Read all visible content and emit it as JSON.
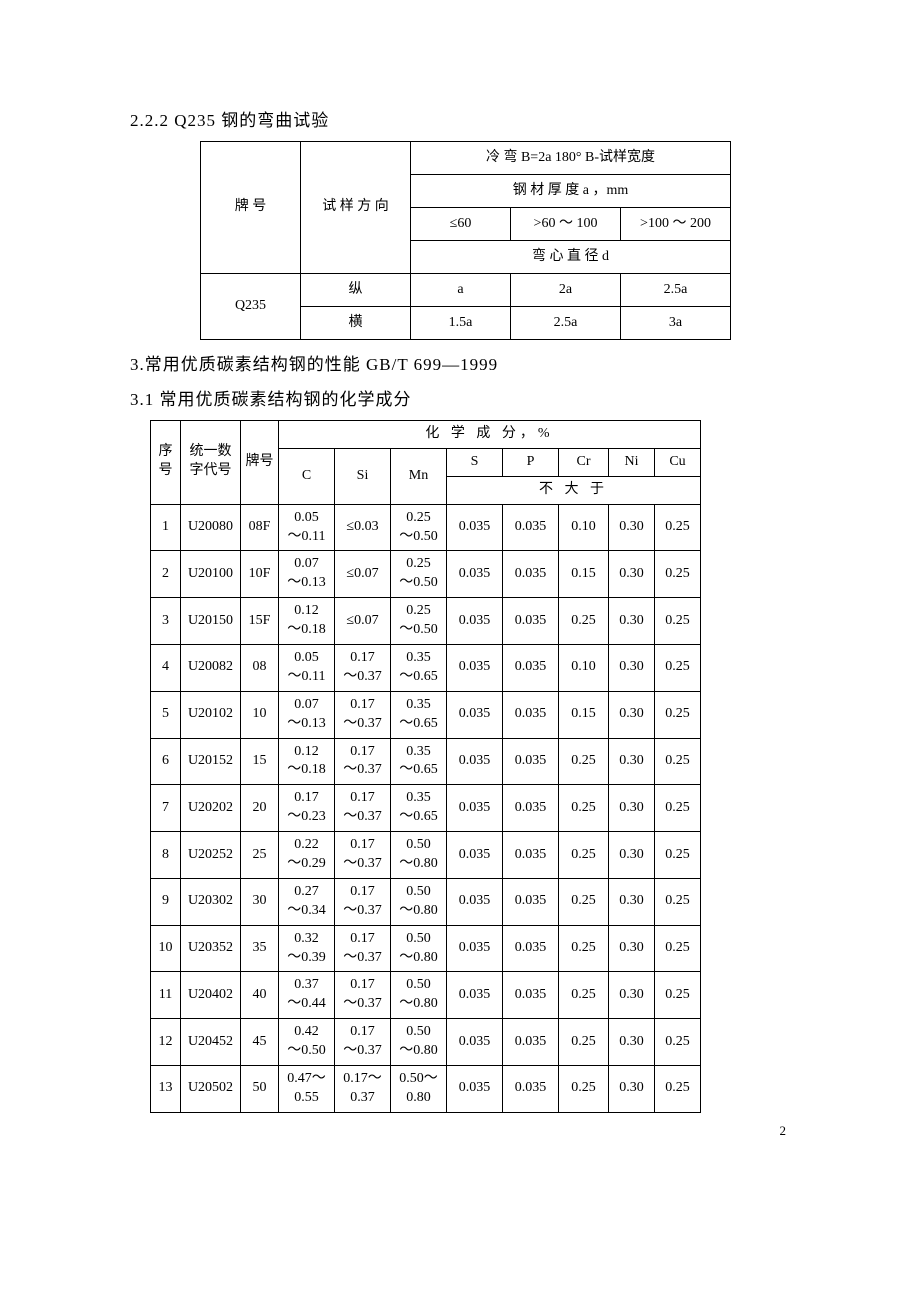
{
  "section222": {
    "heading": "2.2.2  Q235 钢的弯曲试验",
    "table": {
      "col_grade": "牌  号",
      "col_dir": "试 样 方 向",
      "cold_bend": "冷 弯 B=2a    180°    B-试样宽度",
      "thickness": "钢 材 厚 度 a ，mm",
      "range1": "≤60",
      "range2": ">60 ～ 100",
      "range3": ">100 ～ 200",
      "diam": "弯 心 直 径 d",
      "grade": "Q235",
      "long": "纵",
      "trans": "横",
      "r1c1": "a",
      "r1c2": "2a",
      "r1c3": "2.5a",
      "r2c1": "1.5a",
      "r2c2": "2.5a",
      "r2c3": "3a"
    }
  },
  "section3": {
    "heading": "3.常用优质碳素结构钢的性能  GB/T 699—1999"
  },
  "section31": {
    "heading": "3.1 常用优质碳素结构钢的化学成分",
    "header": {
      "seq": "序号",
      "code": "统一数字代号",
      "grade": "牌号",
      "chem": "化 学 成 分，%",
      "C": "C",
      "Si": "Si",
      "Mn": "Mn",
      "S": "S",
      "P": "P",
      "Cr": "Cr",
      "Ni": "Ni",
      "Cu": "Cu",
      "le": "不 大 于"
    },
    "rows": [
      {
        "n": "1",
        "code": "U20080",
        "g": "08F",
        "C": "0.05\n～0.11",
        "Si": "≤0.03",
        "Mn": "0.25\n～0.50",
        "S": "0.035",
        "P": "0.035",
        "Cr": "0.10",
        "Ni": "0.30",
        "Cu": "0.25"
      },
      {
        "n": "2",
        "code": "U20100",
        "g": "10F",
        "C": "0.07\n～0.13",
        "Si": "≤0.07",
        "Mn": "0.25\n～0.50",
        "S": "0.035",
        "P": "0.035",
        "Cr": "0.15",
        "Ni": "0.30",
        "Cu": "0.25"
      },
      {
        "n": "3",
        "code": "U20150",
        "g": "15F",
        "C": "0.12\n～0.18",
        "Si": "≤0.07",
        "Mn": "0.25\n～0.50",
        "S": "0.035",
        "P": "0.035",
        "Cr": "0.25",
        "Ni": "0.30",
        "Cu": "0.25"
      },
      {
        "n": "4",
        "code": "U20082",
        "g": "08",
        "C": "0.05\n～0.11",
        "Si": "0.17\n～0.37",
        "Mn": "0.35\n～0.65",
        "S": "0.035",
        "P": "0.035",
        "Cr": "0.10",
        "Ni": "0.30",
        "Cu": "0.25"
      },
      {
        "n": "5",
        "code": "U20102",
        "g": "10",
        "C": "0.07\n～0.13",
        "Si": "0.17\n～0.37",
        "Mn": "0.35\n～0.65",
        "S": "0.035",
        "P": "0.035",
        "Cr": "0.15",
        "Ni": "0.30",
        "Cu": "0.25"
      },
      {
        "n": "6",
        "code": "U20152",
        "g": "15",
        "C": "0.12\n～0.18",
        "Si": "0.17\n～0.37",
        "Mn": "0.35\n～0.65",
        "S": "0.035",
        "P": "0.035",
        "Cr": "0.25",
        "Ni": "0.30",
        "Cu": "0.25"
      },
      {
        "n": "7",
        "code": "U20202",
        "g": "20",
        "C": "0.17\n～0.23",
        "Si": "0.17\n～0.37",
        "Mn": "0.35\n～0.65",
        "S": "0.035",
        "P": "0.035",
        "Cr": "0.25",
        "Ni": "0.30",
        "Cu": "0.25"
      },
      {
        "n": "8",
        "code": "U20252",
        "g": "25",
        "C": "0.22\n～0.29",
        "Si": "0.17\n～0.37",
        "Mn": "0.50\n～0.80",
        "S": "0.035",
        "P": "0.035",
        "Cr": "0.25",
        "Ni": "0.30",
        "Cu": "0.25"
      },
      {
        "n": "9",
        "code": "U20302",
        "g": "30",
        "C": "0.27\n～0.34",
        "Si": "0.17\n～0.37",
        "Mn": "0.50\n～0.80",
        "S": "0.035",
        "P": "0.035",
        "Cr": "0.25",
        "Ni": "0.30",
        "Cu": "0.25"
      },
      {
        "n": "10",
        "code": "U20352",
        "g": "35",
        "C": "0.32\n～0.39",
        "Si": "0.17\n～0.37",
        "Mn": "0.50\n～0.80",
        "S": "0.035",
        "P": "0.035",
        "Cr": "0.25",
        "Ni": "0.30",
        "Cu": "0.25"
      },
      {
        "n": "11",
        "code": "U20402",
        "g": "40",
        "C": "0.37\n～0.44",
        "Si": "0.17\n～0.37",
        "Mn": "0.50\n～0.80",
        "S": "0.035",
        "P": "0.035",
        "Cr": "0.25",
        "Ni": "0.30",
        "Cu": "0.25"
      },
      {
        "n": "12",
        "code": "U20452",
        "g": "45",
        "C": "0.42\n～0.50",
        "Si": "0.17\n～0.37",
        "Mn": "0.50\n～0.80",
        "S": "0.035",
        "P": "0.035",
        "Cr": "0.25",
        "Ni": "0.30",
        "Cu": "0.25"
      },
      {
        "n": "13",
        "code": "U20502",
        "g": "50",
        "C": "0.47～\n0.55",
        "Si": "0.17～\n0.37",
        "Mn": "0.50～\n0.80",
        "S": "0.035",
        "P": "0.035",
        "Cr": "0.25",
        "Ni": "0.30",
        "Cu": "0.25"
      }
    ],
    "colwidths": {
      "n": 30,
      "code": 60,
      "g": 38,
      "C": 56,
      "Si": 56,
      "Mn": 56,
      "S": 56,
      "P": 56,
      "Cr": 50,
      "Ni": 46,
      "Cu": 46
    }
  },
  "page_number": "2"
}
